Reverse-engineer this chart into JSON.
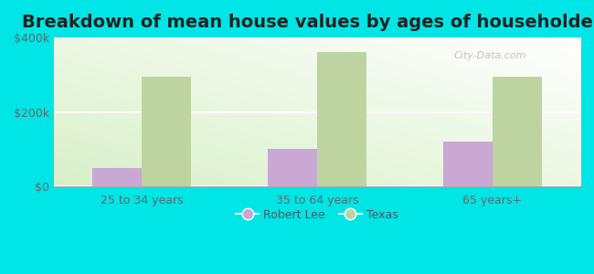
{
  "title": "Breakdown of mean house values by ages of householders",
  "categories": [
    "25 to 34 years",
    "35 to 64 years",
    "65 years+"
  ],
  "robert_lee": [
    50000,
    100000,
    120000
  ],
  "texas": [
    295000,
    360000,
    295000
  ],
  "ylim": [
    0,
    400000
  ],
  "yticks": [
    0,
    200000,
    400000
  ],
  "ytick_labels": [
    "$0",
    "$200k",
    "$400k"
  ],
  "robert_lee_color": "#c9a8d4",
  "texas_color": "#bdd4a0",
  "background_color": "#00e5e5",
  "title_fontsize": 14,
  "legend_labels": [
    "Robert Lee",
    "Texas"
  ],
  "bar_width": 0.28,
  "watermark": "City-Data.com"
}
